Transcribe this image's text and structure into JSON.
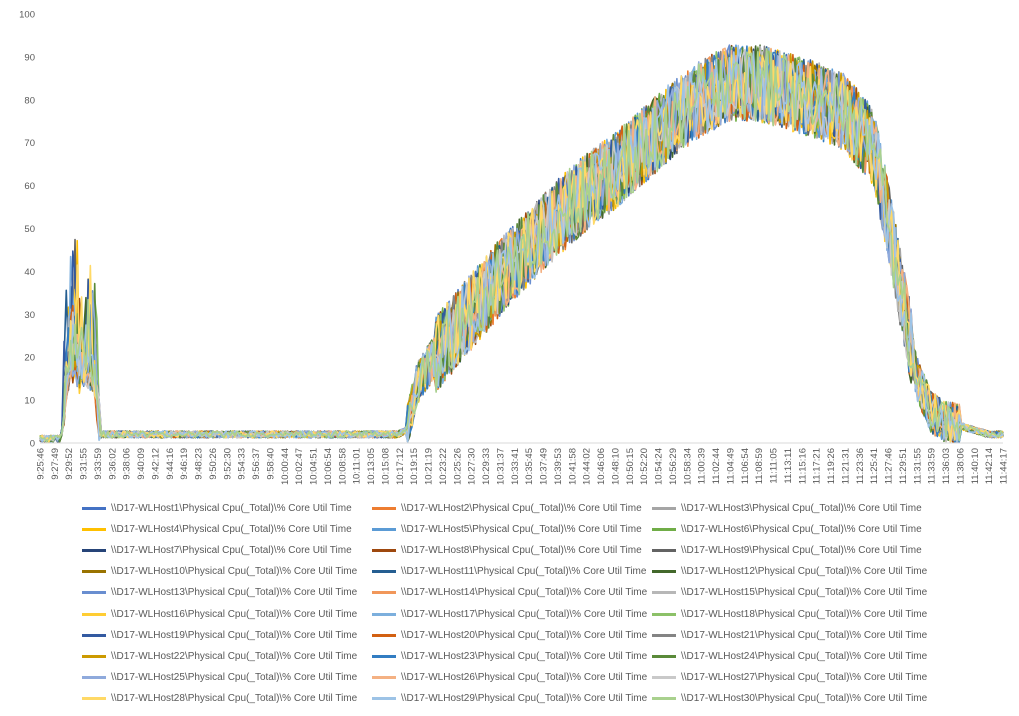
{
  "chart_data": {
    "type": "line",
    "title": "",
    "xlabel": "",
    "ylabel": "",
    "ylim": [
      0,
      100
    ],
    "y_ticks": [
      0,
      10,
      20,
      30,
      40,
      50,
      60,
      70,
      80,
      90,
      100
    ],
    "grid": "none",
    "legend_position": "bottom",
    "x_tick_labels": [
      "9:25:46",
      "9:27:49",
      "9:29:52",
      "9:31:55",
      "9:33:59",
      "9:36:02",
      "9:38:06",
      "9:40:09",
      "9:42:12",
      "9:44:16",
      "9:46:19",
      "9:48:23",
      "9:50:26",
      "9:52:30",
      "9:54:33",
      "9:56:37",
      "9:58:40",
      "10:00:44",
      "10:02:47",
      "10:04:51",
      "10:06:54",
      "10:08:58",
      "10:11:01",
      "10:13:05",
      "10:15:08",
      "10:17:12",
      "10:19:15",
      "10:21:19",
      "10:23:22",
      "10:25:26",
      "10:27:30",
      "10:29:33",
      "10:31:37",
      "10:33:41",
      "10:35:45",
      "10:37:49",
      "10:39:53",
      "10:41:58",
      "10:44:02",
      "10:46:06",
      "10:48:10",
      "10:50:15",
      "10:52:20",
      "10:54:24",
      "10:56:29",
      "10:58:34",
      "11:00:39",
      "11:02:44",
      "11:04:49",
      "11:06:54",
      "11:08:59",
      "11:11:05",
      "11:13:11",
      "11:15:16",
      "11:17:21",
      "11:19:26",
      "11:21:31",
      "11:23:36",
      "11:25:41",
      "11:27:46",
      "11:29:51",
      "11:31:55",
      "11:33:59",
      "11:36:03",
      "11:38:06",
      "11:40:10",
      "11:42:14",
      "11:44:17"
    ],
    "overall_profile": {
      "x": [
        "9:25:46",
        "9:28:50",
        "9:30:00",
        "9:31:00",
        "9:32:00",
        "9:33:30",
        "9:34:30",
        "9:40:09",
        "9:50:26",
        "10:00:44",
        "10:10:00",
        "10:17:12",
        "10:18:30",
        "10:20:00",
        "10:23:22",
        "10:27:30",
        "10:31:37",
        "10:35:45",
        "10:39:53",
        "10:44:02",
        "10:48:10",
        "10:52:20",
        "10:56:29",
        "11:00:39",
        "11:04:49",
        "11:08:59",
        "11:13:11",
        "11:17:21",
        "11:21:31",
        "11:25:41",
        "11:27:46",
        "11:29:51",
        "11:31:55",
        "11:34:00",
        "11:36:03",
        "11:38:06",
        "11:40:10",
        "11:42:14",
        "11:44:17"
      ],
      "y": [
        1,
        1,
        24,
        22,
        18,
        17,
        2,
        2,
        2,
        2,
        2,
        2,
        3,
        14,
        22,
        30,
        38,
        45,
        52,
        58,
        63,
        69,
        75,
        80,
        84,
        84,
        82,
        80,
        77,
        69,
        52,
        33,
        15,
        7,
        5,
        4,
        3,
        2,
        2
      ]
    },
    "series": [
      {
        "name": "\\\\D17-WLHost1\\Physical Cpu(_Total)\\% Core Util Time",
        "color": "#4472C4"
      },
      {
        "name": "\\\\D17-WLHost2\\Physical Cpu(_Total)\\% Core Util Time",
        "color": "#ED7D31"
      },
      {
        "name": "\\\\D17-WLHost3\\Physical Cpu(_Total)\\% Core Util Time",
        "color": "#A5A5A5"
      },
      {
        "name": "\\\\D17-WLHost4\\Physical Cpu(_Total)\\% Core Util Time",
        "color": "#FFC000"
      },
      {
        "name": "\\\\D17-WLHost5\\Physical Cpu(_Total)\\% Core Util Time",
        "color": "#5B9BD5"
      },
      {
        "name": "\\\\D17-WLHost6\\Physical Cpu(_Total)\\% Core Util Time",
        "color": "#70AD47"
      },
      {
        "name": "\\\\D17-WLHost7\\Physical Cpu(_Total)\\% Core Util Time",
        "color": "#264478"
      },
      {
        "name": "\\\\D17-WLHost8\\Physical Cpu(_Total)\\% Core Util Time",
        "color": "#9E480E"
      },
      {
        "name": "\\\\D17-WLHost9\\Physical Cpu(_Total)\\% Core Util Time",
        "color": "#636363"
      },
      {
        "name": "\\\\D17-WLHost10\\Physical Cpu(_Total)\\% Core Util Time",
        "color": "#997300"
      },
      {
        "name": "\\\\D17-WLHost11\\Physical Cpu(_Total)\\% Core Util Time",
        "color": "#255E91"
      },
      {
        "name": "\\\\D17-WLHost12\\Physical Cpu(_Total)\\% Core Util Time",
        "color": "#43682B"
      },
      {
        "name": "\\\\D17-WLHost13\\Physical Cpu(_Total)\\% Core Util Time",
        "color": "#698ED0"
      },
      {
        "name": "\\\\D17-WLHost14\\Physical Cpu(_Total)\\% Core Util Time",
        "color": "#F1975A"
      },
      {
        "name": "\\\\D17-WLHost15\\Physical Cpu(_Total)\\% Core Util Time",
        "color": "#B7B7B7"
      },
      {
        "name": "\\\\D17-WLHost16\\Physical Cpu(_Total)\\% Core Util Time",
        "color": "#FFCD33"
      },
      {
        "name": "\\\\D17-WLHost17\\Physical Cpu(_Total)\\% Core Util Time",
        "color": "#7CAFDD"
      },
      {
        "name": "\\\\D17-WLHost18\\Physical Cpu(_Total)\\% Core Util Time",
        "color": "#8CC168"
      },
      {
        "name": "\\\\D17-WLHost19\\Physical Cpu(_Total)\\% Core Util Time",
        "color": "#335AA1"
      },
      {
        "name": "\\\\D17-WLHost20\\Physical Cpu(_Total)\\% Core Util Time",
        "color": "#D26012"
      },
      {
        "name": "\\\\D17-WLHost21\\Physical Cpu(_Total)\\% Core Util Time",
        "color": "#848484"
      },
      {
        "name": "\\\\D17-WLHost22\\Physical Cpu(_Total)\\% Core Util Time",
        "color": "#CC9A00"
      },
      {
        "name": "\\\\D17-WLHost23\\Physical Cpu(_Total)\\% Core Util Time",
        "color": "#327DC2"
      },
      {
        "name": "\\\\D17-WLHost24\\Physical Cpu(_Total)\\% Core Util Time",
        "color": "#5A8A39"
      },
      {
        "name": "\\\\D17-WLHost25\\Physical Cpu(_Total)\\% Core Util Time",
        "color": "#8FAADC"
      },
      {
        "name": "\\\\D17-WLHost26\\Physical Cpu(_Total)\\% Core Util Time",
        "color": "#F4B183"
      },
      {
        "name": "\\\\D17-WLHost27\\Physical Cpu(_Total)\\% Core Util Time",
        "color": "#C9C9C9"
      },
      {
        "name": "\\\\D17-WLHost28\\Physical Cpu(_Total)\\% Core Util Time",
        "color": "#FFD966"
      },
      {
        "name": "\\\\D17-WLHost29\\Physical Cpu(_Total)\\% Core Util Time",
        "color": "#9DC3E6"
      },
      {
        "name": "\\\\D17-WLHost30\\Physical Cpu(_Total)\\% Core Util Time",
        "color": "#A9D18E"
      }
    ]
  }
}
